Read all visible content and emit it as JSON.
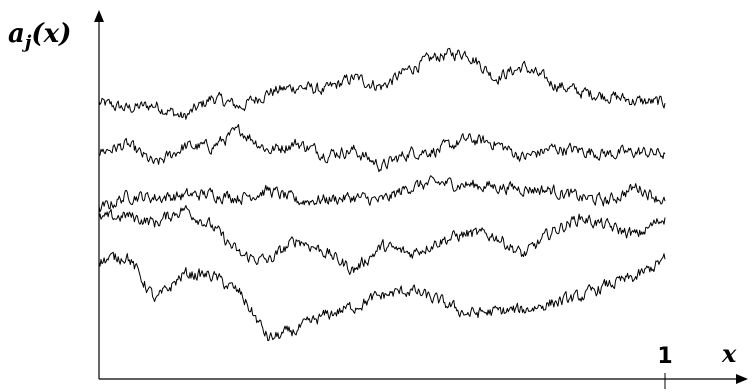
{
  "chart_data": {
    "type": "line",
    "title": "",
    "ylabel": "a_j(x)",
    "xlabel": "x",
    "xlim": [
      0,
      1.12
    ],
    "ylim": [
      0,
      1
    ],
    "x_ticks": [
      {
        "value": 1,
        "label": "1"
      }
    ],
    "grid": false,
    "legend": "none",
    "series": [
      {
        "points": [
          [
            0.0,
            0.76
          ],
          [
            0.05,
            0.745
          ],
          [
            0.1,
            0.755
          ],
          [
            0.15,
            0.72
          ],
          [
            0.2,
            0.775
          ],
          [
            0.25,
            0.75
          ],
          [
            0.3,
            0.79
          ],
          [
            0.35,
            0.805
          ],
          [
            0.4,
            0.795
          ],
          [
            0.45,
            0.83
          ],
          [
            0.5,
            0.805
          ],
          [
            0.55,
            0.855
          ],
          [
            0.6,
            0.89
          ],
          [
            0.65,
            0.9
          ],
          [
            0.7,
            0.83
          ],
          [
            0.75,
            0.86
          ],
          [
            0.8,
            0.815
          ],
          [
            0.85,
            0.79
          ],
          [
            0.9,
            0.78
          ],
          [
            0.95,
            0.765
          ],
          [
            1.0,
            0.76
          ]
        ],
        "color": "#000000"
      },
      {
        "points": [
          [
            0.0,
            0.625
          ],
          [
            0.05,
            0.645
          ],
          [
            0.1,
            0.59
          ],
          [
            0.15,
            0.64
          ],
          [
            0.2,
            0.64
          ],
          [
            0.25,
            0.685
          ],
          [
            0.3,
            0.63
          ],
          [
            0.35,
            0.65
          ],
          [
            0.4,
            0.62
          ],
          [
            0.45,
            0.63
          ],
          [
            0.5,
            0.585
          ],
          [
            0.55,
            0.625
          ],
          [
            0.6,
            0.63
          ],
          [
            0.65,
            0.66
          ],
          [
            0.7,
            0.65
          ],
          [
            0.75,
            0.61
          ],
          [
            0.8,
            0.635
          ],
          [
            0.85,
            0.63
          ],
          [
            0.9,
            0.62
          ],
          [
            0.95,
            0.625
          ],
          [
            1.0,
            0.62
          ]
        ],
        "color": "#000000"
      },
      {
        "points": [
          [
            0.0,
            0.465
          ],
          [
            0.05,
            0.505
          ],
          [
            0.1,
            0.5
          ],
          [
            0.15,
            0.505
          ],
          [
            0.2,
            0.51
          ],
          [
            0.25,
            0.5
          ],
          [
            0.3,
            0.52
          ],
          [
            0.35,
            0.49
          ],
          [
            0.4,
            0.495
          ],
          [
            0.45,
            0.5
          ],
          [
            0.5,
            0.49
          ],
          [
            0.55,
            0.53
          ],
          [
            0.6,
            0.54
          ],
          [
            0.65,
            0.535
          ],
          [
            0.7,
            0.53
          ],
          [
            0.75,
            0.525
          ],
          [
            0.8,
            0.52
          ],
          [
            0.85,
            0.5
          ],
          [
            0.9,
            0.49
          ],
          [
            0.95,
            0.53
          ],
          [
            1.0,
            0.49
          ]
        ],
        "color": "#000000"
      },
      {
        "points": [
          [
            0.0,
            0.44
          ],
          [
            0.05,
            0.45
          ],
          [
            0.1,
            0.43
          ],
          [
            0.15,
            0.47
          ],
          [
            0.2,
            0.42
          ],
          [
            0.25,
            0.34
          ],
          [
            0.3,
            0.325
          ],
          [
            0.35,
            0.385
          ],
          [
            0.4,
            0.35
          ],
          [
            0.45,
            0.3
          ],
          [
            0.5,
            0.365
          ],
          [
            0.55,
            0.345
          ],
          [
            0.6,
            0.38
          ],
          [
            0.65,
            0.4
          ],
          [
            0.7,
            0.395
          ],
          [
            0.75,
            0.34
          ],
          [
            0.8,
            0.405
          ],
          [
            0.85,
            0.445
          ],
          [
            0.9,
            0.42
          ],
          [
            0.95,
            0.395
          ],
          [
            1.0,
            0.445
          ]
        ],
        "color": "#000000"
      },
      {
        "points": [
          [
            0.0,
            0.325
          ],
          [
            0.05,
            0.34
          ],
          [
            0.1,
            0.215
          ],
          [
            0.15,
            0.29
          ],
          [
            0.2,
            0.285
          ],
          [
            0.25,
            0.235
          ],
          [
            0.3,
            0.11
          ],
          [
            0.35,
            0.135
          ],
          [
            0.4,
            0.175
          ],
          [
            0.45,
            0.2
          ],
          [
            0.5,
            0.23
          ],
          [
            0.55,
            0.245
          ],
          [
            0.6,
            0.215
          ],
          [
            0.65,
            0.18
          ],
          [
            0.7,
            0.185
          ],
          [
            0.75,
            0.19
          ],
          [
            0.8,
            0.21
          ],
          [
            0.85,
            0.225
          ],
          [
            0.9,
            0.26
          ],
          [
            0.95,
            0.28
          ],
          [
            1.0,
            0.33
          ]
        ],
        "color": "#000000"
      }
    ]
  }
}
